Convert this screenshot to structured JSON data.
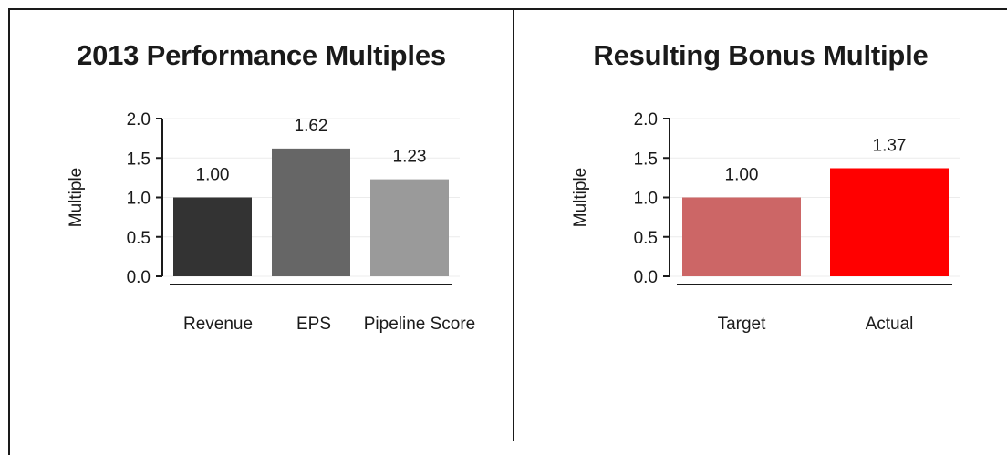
{
  "chart_data": [
    {
      "type": "bar",
      "title": "2013 Performance Multiples",
      "ylabel": "Multiple",
      "xlabel": "",
      "ylim": [
        0,
        2
      ],
      "yticks": [
        "0.0",
        "0.5",
        "1.0",
        "1.5",
        "2.0"
      ],
      "grid": true,
      "categories": [
        "Revenue",
        "EPS",
        "Pipeline Score"
      ],
      "values": [
        1.0,
        1.62,
        1.23
      ],
      "value_labels": [
        "1.00",
        "1.62",
        "1.23"
      ],
      "colors": [
        "#333333",
        "#666666",
        "#9a9a9a"
      ]
    },
    {
      "type": "bar",
      "title": "Resulting Bonus Multiple",
      "ylabel": "Multiple",
      "xlabel": "",
      "ylim": [
        0,
        2
      ],
      "yticks": [
        "0.0",
        "0.5",
        "1.0",
        "1.5",
        "2.0"
      ],
      "grid": true,
      "categories": [
        "Target",
        "Actual"
      ],
      "values": [
        1.0,
        1.37
      ],
      "value_labels": [
        "1.00",
        "1.37"
      ],
      "colors": [
        "#cc6666",
        "#ff0000"
      ]
    }
  ]
}
